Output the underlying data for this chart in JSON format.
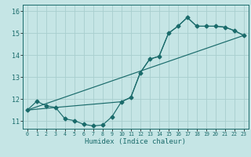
{
  "xlabel": "Humidex (Indice chaleur)",
  "bg_color": "#c5e5e5",
  "line_color": "#1a6b6b",
  "grid_color": "#a8cece",
  "xlim": [
    -0.5,
    23.5
  ],
  "ylim": [
    10.65,
    16.3
  ],
  "xticks": [
    0,
    1,
    2,
    3,
    4,
    5,
    6,
    7,
    8,
    9,
    10,
    11,
    12,
    13,
    14,
    15,
    16,
    17,
    18,
    19,
    20,
    21,
    22,
    23
  ],
  "yticks": [
    11,
    12,
    13,
    14,
    15,
    16
  ],
  "curve1_x": [
    0,
    1,
    2,
    3,
    4,
    5,
    6,
    7,
    8,
    9,
    10,
    11,
    12,
    13,
    14,
    15,
    16,
    17,
    18,
    19,
    20,
    21,
    22,
    23
  ],
  "curve1_y": [
    11.5,
    11.9,
    11.7,
    11.62,
    11.1,
    11.02,
    10.85,
    10.78,
    10.82,
    11.2,
    11.88,
    12.08,
    13.2,
    13.82,
    13.95,
    15.0,
    15.32,
    15.72,
    15.32,
    15.32,
    15.32,
    15.28,
    15.12,
    14.9
  ],
  "curve2_x": [
    0,
    3,
    10,
    11,
    12,
    13,
    14,
    15,
    16,
    17,
    18,
    19,
    20,
    21,
    22,
    23
  ],
  "curve2_y": [
    11.5,
    11.62,
    11.88,
    12.08,
    13.2,
    13.82,
    13.95,
    15.0,
    15.32,
    15.72,
    15.32,
    15.32,
    15.32,
    15.28,
    15.12,
    14.9
  ],
  "line3_x": [
    0,
    23
  ],
  "line3_y": [
    11.5,
    14.9
  ],
  "markersize": 2.5,
  "linewidth": 0.85,
  "xlabel_fontsize": 6.5,
  "xtick_fontsize": 4.8,
  "ytick_fontsize": 6.0
}
